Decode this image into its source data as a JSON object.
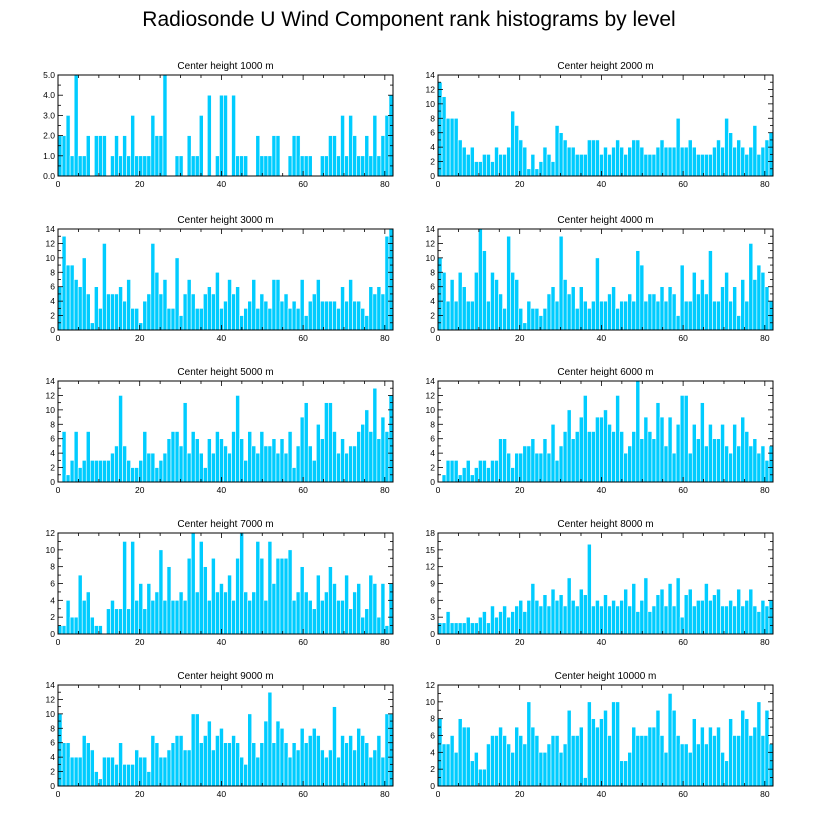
{
  "title": "Radiosonde U Wind Component rank histograms by level",
  "colors": {
    "bar": "#00ccff",
    "bar_edge": "#ffffff",
    "axis": "#000000"
  },
  "chart_data": [
    {
      "type": "bar",
      "title": "Center height 1000 m",
      "xlim": [
        0,
        82
      ],
      "xticks": [
        0,
        20,
        40,
        60,
        80
      ],
      "ylim": [
        0,
        5
      ],
      "yticks": [
        0,
        1,
        2,
        3,
        4,
        5
      ],
      "ytick_labels": [
        "0.0",
        "1.0",
        "2.0",
        "3.0",
        "4.0",
        "5.0"
      ],
      "values": [
        2,
        2,
        3,
        1,
        5,
        1,
        1,
        2,
        0,
        2,
        2,
        2,
        0,
        1,
        2,
        1,
        2,
        1,
        3,
        1,
        1,
        1,
        1,
        3,
        2,
        2,
        5,
        0,
        0,
        1,
        1,
        0,
        2,
        1,
        1,
        3,
        0,
        4,
        0,
        1,
        4,
        4,
        0,
        4,
        1,
        1,
        1,
        0,
        0,
        2,
        1,
        1,
        1,
        2,
        2,
        0,
        0,
        1,
        2,
        2,
        1,
        1,
        1,
        0,
        0,
        1,
        1,
        2,
        2,
        1,
        3,
        1,
        3,
        2,
        1,
        1,
        2,
        1,
        3,
        1,
        2,
        3,
        4
      ]
    },
    {
      "type": "bar",
      "title": "Center height 2000 m",
      "xlim": [
        0,
        82
      ],
      "xticks": [
        0,
        20,
        40,
        60,
        80
      ],
      "ylim": [
        0,
        14
      ],
      "yticks": [
        0,
        2,
        4,
        6,
        8,
        10,
        12,
        14
      ],
      "ytick_labels": [
        "0",
        "2",
        "4",
        "6",
        "8",
        "10",
        "12",
        "14"
      ],
      "values": [
        13,
        11,
        8,
        8,
        8,
        5,
        4,
        3,
        4,
        2,
        2,
        3,
        3,
        2,
        4,
        3,
        3,
        4,
        9,
        7,
        5,
        4,
        1,
        3,
        1,
        2,
        4,
        3,
        2,
        7,
        6,
        5,
        4,
        4,
        3,
        3,
        3,
        5,
        5,
        5,
        3,
        4,
        3,
        4,
        5,
        4,
        3,
        4,
        5,
        5,
        4,
        3,
        3,
        3,
        4,
        5,
        4,
        4,
        4,
        8,
        4,
        4,
        5,
        4,
        3,
        3,
        3,
        3,
        4,
        5,
        4,
        8,
        6,
        4,
        5,
        4,
        3,
        4,
        7,
        3,
        4,
        5,
        6
      ]
    },
    {
      "type": "bar",
      "title": "Center height 3000 m",
      "xlim": [
        0,
        82
      ],
      "xticks": [
        0,
        20,
        40,
        60,
        80
      ],
      "ylim": [
        0,
        14
      ],
      "yticks": [
        0,
        2,
        4,
        6,
        8,
        10,
        12,
        14
      ],
      "ytick_labels": [
        "0",
        "2",
        "4",
        "6",
        "8",
        "10",
        "12",
        "14"
      ],
      "values": [
        6,
        13,
        9,
        9,
        7,
        6,
        10,
        5,
        1,
        6,
        3,
        12,
        5,
        5,
        5,
        6,
        4,
        7,
        3,
        3,
        1,
        4,
        5,
        12,
        8,
        5,
        7,
        3,
        3,
        10,
        2,
        5,
        7,
        5,
        3,
        3,
        5,
        6,
        5,
        8,
        3,
        4,
        7,
        5,
        6,
        2,
        3,
        4,
        7,
        3,
        5,
        4,
        3,
        7,
        7,
        4,
        5,
        3,
        4,
        3,
        7,
        2,
        4,
        5,
        7,
        4,
        4,
        4,
        4,
        3,
        6,
        4,
        7,
        4,
        4,
        3,
        2,
        6,
        5,
        6,
        5,
        13,
        14
      ]
    },
    {
      "type": "bar",
      "title": "Center height 4000 m",
      "xlim": [
        0,
        82
      ],
      "xticks": [
        0,
        20,
        40,
        60,
        80
      ],
      "ylim": [
        0,
        14
      ],
      "yticks": [
        0,
        2,
        4,
        6,
        8,
        10,
        12,
        14
      ],
      "ytick_labels": [
        "0",
        "2",
        "4",
        "6",
        "8",
        "10",
        "12",
        "14"
      ],
      "values": [
        10,
        8,
        4,
        7,
        4,
        8,
        6,
        4,
        4,
        8,
        14,
        11,
        4,
        8,
        7,
        5,
        3,
        13,
        8,
        7,
        3,
        1,
        4,
        3,
        3,
        2,
        3,
        5,
        6,
        4,
        13,
        7,
        5,
        6,
        3,
        6,
        4,
        3,
        4,
        10,
        4,
        4,
        5,
        6,
        3,
        4,
        4,
        5,
        4,
        11,
        9,
        4,
        5,
        5,
        4,
        6,
        4,
        6,
        5,
        2,
        9,
        4,
        4,
        8,
        5,
        7,
        5,
        11,
        4,
        4,
        6,
        8,
        4,
        6,
        2,
        7,
        4,
        12,
        7,
        9,
        8,
        6,
        4
      ]
    },
    {
      "type": "bar",
      "title": "Center height 5000 m",
      "xlim": [
        0,
        82
      ],
      "xticks": [
        0,
        20,
        40,
        60,
        80
      ],
      "ylim": [
        0,
        14
      ],
      "yticks": [
        0,
        2,
        4,
        6,
        8,
        10,
        12,
        14
      ],
      "ytick_labels": [
        "0",
        "2",
        "4",
        "6",
        "8",
        "10",
        "12",
        "14"
      ],
      "values": [
        0,
        7,
        1,
        3,
        7,
        2,
        3,
        7,
        3,
        3,
        3,
        3,
        3,
        4,
        5,
        12,
        5,
        3,
        2,
        2,
        3,
        7,
        4,
        4,
        2,
        3,
        4,
        6,
        7,
        7,
        5,
        11,
        4,
        7,
        6,
        4,
        2,
        6,
        4,
        7,
        6,
        5,
        4,
        7,
        12,
        6,
        3,
        7,
        5,
        4,
        7,
        5,
        5,
        6,
        4,
        6,
        4,
        7,
        2,
        5,
        9,
        11,
        5,
        3,
        8,
        6,
        11,
        11,
        7,
        4,
        6,
        4,
        5,
        5,
        7,
        8,
        10,
        7,
        13,
        6,
        9,
        7,
        12
      ]
    },
    {
      "type": "bar",
      "title": "Center height 6000 m",
      "xlim": [
        0,
        82
      ],
      "xticks": [
        0,
        20,
        40,
        60,
        80
      ],
      "ylim": [
        0,
        14
      ],
      "yticks": [
        0,
        2,
        4,
        6,
        8,
        10,
        12,
        14
      ],
      "ytick_labels": [
        "0",
        "2",
        "4",
        "6",
        "8",
        "10",
        "12",
        "14"
      ],
      "values": [
        0,
        1,
        3,
        3,
        3,
        1,
        2,
        3,
        1,
        2,
        3,
        3,
        2,
        3,
        3,
        6,
        6,
        4,
        2,
        4,
        4,
        5,
        5,
        6,
        4,
        4,
        6,
        4,
        8,
        3,
        5,
        7,
        10,
        6,
        7,
        9,
        12,
        7,
        7,
        9,
        9,
        10,
        8,
        7,
        12,
        7,
        4,
        5,
        7,
        14,
        6,
        9,
        7,
        6,
        11,
        9,
        5,
        9,
        4,
        8,
        12,
        12,
        4,
        8,
        6,
        11,
        5,
        8,
        6,
        6,
        8,
        5,
        4,
        8,
        5,
        9,
        7,
        5,
        6,
        4,
        5,
        3,
        5
      ]
    },
    {
      "type": "bar",
      "title": "Center height 7000 m",
      "xlim": [
        0,
        82
      ],
      "xticks": [
        0,
        20,
        40,
        60,
        80
      ],
      "ylim": [
        0,
        12
      ],
      "yticks": [
        0,
        2,
        4,
        6,
        8,
        10,
        12
      ],
      "ytick_labels": [
        "0",
        "2",
        "4",
        "6",
        "8",
        "10",
        "12"
      ],
      "values": [
        1,
        1,
        4,
        2,
        2,
        7,
        4,
        5,
        2,
        1,
        1,
        0,
        3,
        4,
        3,
        3,
        11,
        3,
        11,
        4,
        6,
        3,
        6,
        4,
        5,
        10,
        4,
        8,
        4,
        4,
        5,
        4,
        9,
        12,
        5,
        11,
        8,
        4,
        9,
        5,
        6,
        5,
        7,
        4,
        9,
        12,
        5,
        4,
        5,
        11,
        9,
        4,
        11,
        6,
        9,
        9,
        9,
        10,
        4,
        5,
        8,
        5,
        4,
        3,
        7,
        4,
        5,
        8,
        6,
        4,
        4,
        7,
        3,
        5,
        6,
        2,
        3,
        7,
        6,
        2,
        6,
        1,
        6
      ]
    },
    {
      "type": "bar",
      "title": "Center height 8000 m",
      "xlim": [
        0,
        82
      ],
      "xticks": [
        0,
        20,
        40,
        60,
        80
      ],
      "ylim": [
        0,
        18
      ],
      "yticks": [
        0,
        3,
        6,
        9,
        12,
        15,
        18
      ],
      "ytick_labels": [
        "0",
        "3",
        "6",
        "9",
        "12",
        "15",
        "18"
      ],
      "values": [
        2,
        2,
        4,
        2,
        2,
        2,
        2,
        3,
        2,
        2,
        3,
        4,
        2,
        5,
        3,
        4,
        5,
        3,
        4,
        5,
        6,
        4,
        6,
        9,
        6,
        5,
        7,
        5,
        8,
        6,
        7,
        5,
        10,
        6,
        5,
        8,
        7,
        16,
        5,
        6,
        5,
        7,
        5,
        6,
        5,
        6,
        8,
        5,
        9,
        4,
        6,
        10,
        4,
        5,
        7,
        8,
        5,
        9,
        5,
        10,
        3,
        7,
        8,
        5,
        6,
        6,
        9,
        6,
        7,
        8,
        5,
        5,
        6,
        5,
        8,
        5,
        6,
        8,
        5,
        4,
        6,
        5,
        6
      ]
    },
    {
      "type": "bar",
      "title": "Center height 9000 m",
      "xlim": [
        0,
        82
      ],
      "xticks": [
        0,
        20,
        40,
        60,
        80
      ],
      "ylim": [
        0,
        14
      ],
      "yticks": [
        0,
        2,
        4,
        6,
        8,
        10,
        12,
        14
      ],
      "ytick_labels": [
        "0",
        "2",
        "4",
        "6",
        "8",
        "10",
        "12",
        "14"
      ],
      "values": [
        10,
        6,
        6,
        4,
        4,
        4,
        7,
        6,
        5,
        2,
        1,
        4,
        4,
        4,
        3,
        6,
        3,
        3,
        3,
        5,
        4,
        4,
        2,
        7,
        6,
        4,
        4,
        5,
        6,
        7,
        7,
        5,
        5,
        10,
        10,
        6,
        7,
        9,
        5,
        7,
        8,
        6,
        6,
        7,
        6,
        4,
        3,
        10,
        6,
        4,
        6,
        9,
        13,
        6,
        9,
        8,
        6,
        4,
        6,
        5,
        8,
        6,
        7,
        8,
        7,
        5,
        4,
        5,
        11,
        4,
        7,
        6,
        7,
        5,
        8,
        7,
        6,
        4,
        5,
        7,
        4,
        10,
        10
      ]
    },
    {
      "type": "bar",
      "title": "Center height 10000 m",
      "xlim": [
        0,
        82
      ],
      "xticks": [
        0,
        20,
        40,
        60,
        80
      ],
      "ylim": [
        0,
        12
      ],
      "yticks": [
        0,
        2,
        4,
        6,
        8,
        10,
        12
      ],
      "ytick_labels": [
        "0",
        "2",
        "4",
        "6",
        "8",
        "10",
        "12"
      ],
      "values": [
        8,
        5,
        5,
        6,
        4,
        8,
        7,
        7,
        3,
        4,
        2,
        2,
        5,
        6,
        6,
        7,
        6,
        5,
        4,
        7,
        6,
        5,
        10,
        7,
        6,
        4,
        4,
        5,
        6,
        6,
        4,
        5,
        9,
        6,
        6,
        7,
        1,
        10,
        8,
        7,
        8,
        9,
        6,
        10,
        10,
        3,
        3,
        4,
        7,
        6,
        6,
        6,
        7,
        7,
        9,
        6,
        4,
        11,
        9,
        6,
        5,
        5,
        4,
        8,
        5,
        7,
        5,
        7,
        6,
        7,
        4,
        3,
        8,
        6,
        6,
        9,
        8,
        6,
        7,
        10,
        6,
        9,
        5
      ]
    }
  ]
}
